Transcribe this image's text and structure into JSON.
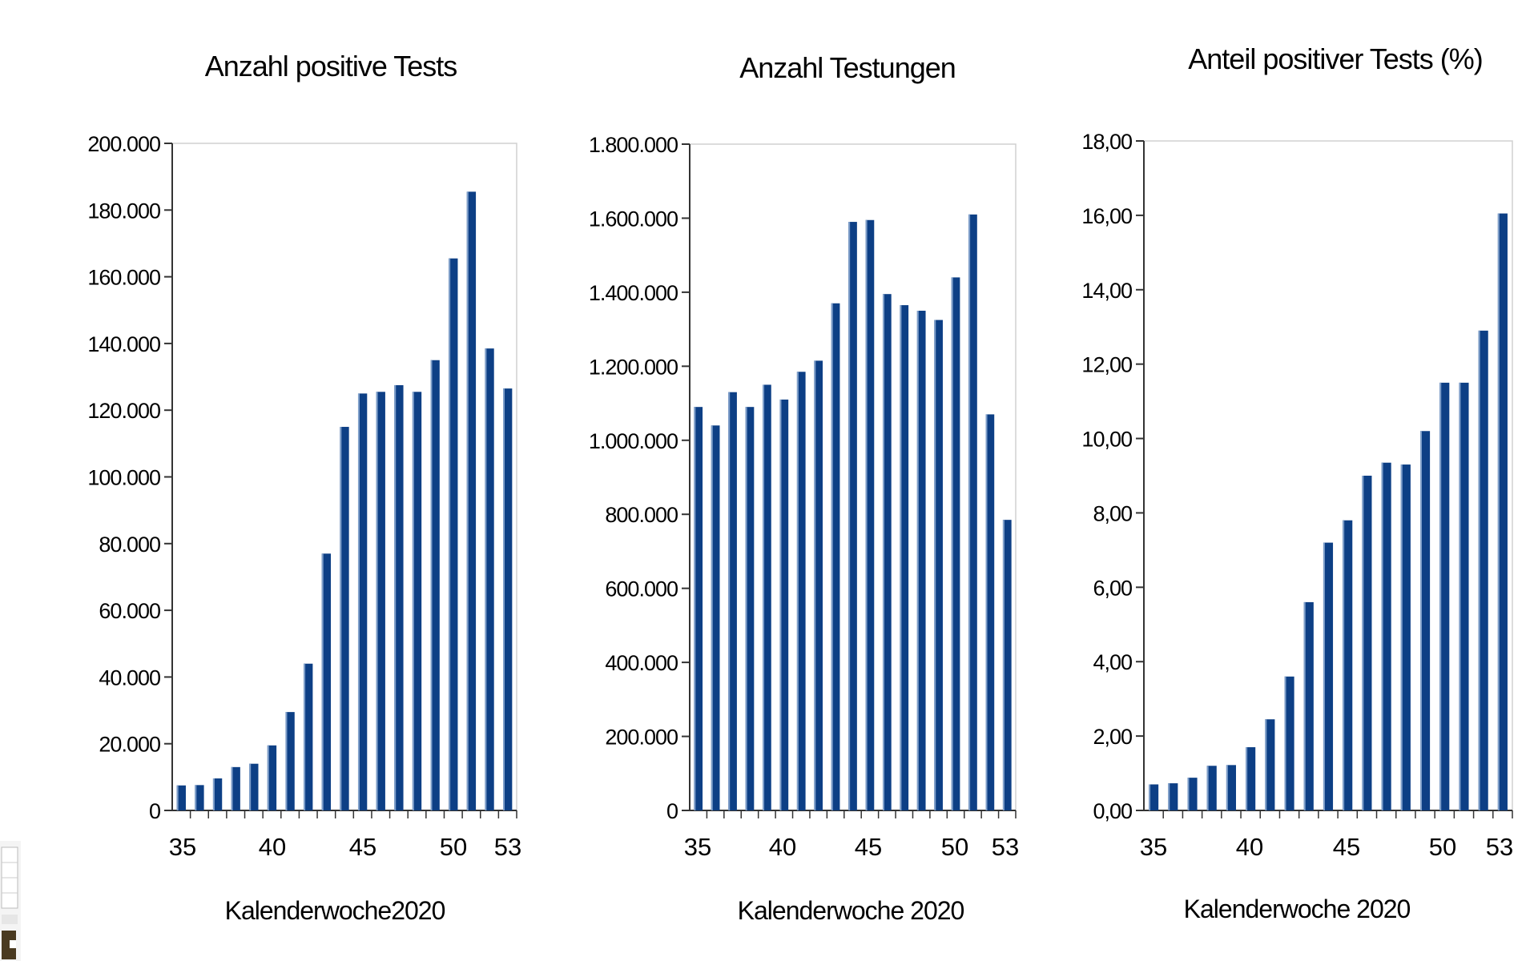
{
  "colors": {
    "bar": "#0d3f85",
    "bar_highlight": "#7f9fca",
    "axis": "#333333",
    "frame": "#d0d0d0"
  },
  "chart_data": [
    {
      "type": "bar",
      "title": "Anzahl positive Tests",
      "xlabel": "Kalenderwoche2020",
      "ylabel": "",
      "x": [
        35,
        36,
        37,
        38,
        39,
        40,
        41,
        42,
        43,
        44,
        45,
        46,
        47,
        48,
        49,
        50,
        51,
        52,
        53
      ],
      "values": [
        7500,
        7600,
        9600,
        13000,
        14000,
        19500,
        29500,
        44000,
        77000,
        115000,
        125000,
        125500,
        127500,
        125500,
        135000,
        165500,
        185500,
        138500,
        126500
      ],
      "ylim": [
        0,
        200000
      ],
      "yticks": [
        "0",
        "20.000",
        "40.000",
        "60.000",
        "80.000",
        "100.000",
        "120.000",
        "140.000",
        "160.000",
        "180.000",
        "200.000"
      ],
      "xticks": [
        "35",
        "40",
        "45",
        "50",
        "53"
      ],
      "grid": false
    },
    {
      "type": "bar",
      "title": "Anzahl Testungen",
      "xlabel": "Kalenderwoche 2020",
      "ylabel": "",
      "x": [
        35,
        36,
        37,
        38,
        39,
        40,
        41,
        42,
        43,
        44,
        45,
        46,
        47,
        48,
        49,
        50,
        51,
        52,
        53
      ],
      "values": [
        1090000,
        1040000,
        1130000,
        1090000,
        1150000,
        1110000,
        1185000,
        1215000,
        1370000,
        1590000,
        1595000,
        1395000,
        1365000,
        1350000,
        1325000,
        1440000,
        1610000,
        1070000,
        785000
      ],
      "ylim": [
        0,
        1800000
      ],
      "yticks": [
        "0",
        "200.000",
        "400.000",
        "600.000",
        "800.000",
        "1.000.000",
        "1.200.000",
        "1.400.000",
        "1.600.000",
        "1.800.000"
      ],
      "xticks": [
        "35",
        "40",
        "45",
        "50",
        "53"
      ],
      "grid": false
    },
    {
      "type": "bar",
      "title": "Anteil positiver Tests (%)",
      "xlabel": "Kalenderwoche 2020",
      "ylabel": "",
      "x": [
        35,
        36,
        37,
        38,
        39,
        40,
        41,
        42,
        43,
        44,
        45,
        46,
        47,
        48,
        49,
        50,
        51,
        52,
        53
      ],
      "values": [
        0.7,
        0.73,
        0.88,
        1.2,
        1.22,
        1.7,
        2.45,
        3.6,
        5.6,
        7.2,
        7.8,
        9.0,
        9.35,
        9.3,
        10.2,
        11.5,
        11.5,
        12.9,
        16.05
      ],
      "ylim": [
        0,
        18
      ],
      "yticks": [
        "0,00",
        "2,00",
        "4,00",
        "6,00",
        "8,00",
        "10,00",
        "12,00",
        "14,00",
        "16,00",
        "18,00"
      ],
      "xticks": [
        "35",
        "40",
        "45",
        "50",
        "53"
      ],
      "grid": false
    }
  ]
}
